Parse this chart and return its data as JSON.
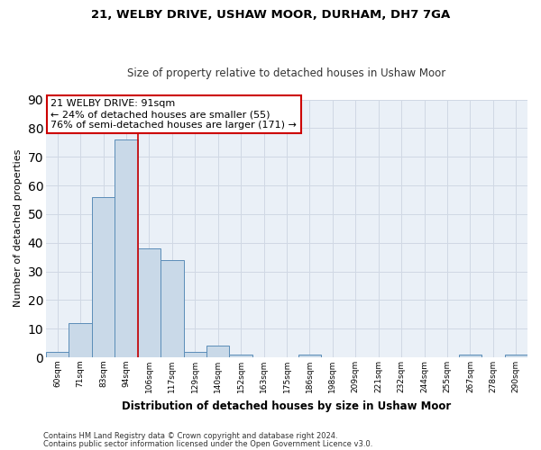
{
  "title_line1": "21, WELBY DRIVE, USHAW MOOR, DURHAM, DH7 7GA",
  "title_line2": "Size of property relative to detached houses in Ushaw Moor",
  "xlabel": "Distribution of detached houses by size in Ushaw Moor",
  "ylabel": "Number of detached properties",
  "bar_labels": [
    "60sqm",
    "71sqm",
    "83sqm",
    "94sqm",
    "106sqm",
    "117sqm",
    "129sqm",
    "140sqm",
    "152sqm",
    "163sqm",
    "175sqm",
    "186sqm",
    "198sqm",
    "209sqm",
    "221sqm",
    "232sqm",
    "244sqm",
    "255sqm",
    "267sqm",
    "278sqm",
    "290sqm"
  ],
  "bar_values": [
    2,
    12,
    56,
    76,
    38,
    34,
    2,
    4,
    1,
    0,
    0,
    1,
    0,
    0,
    0,
    0,
    0,
    0,
    1,
    0,
    1
  ],
  "bar_color": "#c9d9e8",
  "bar_edge_color": "#5b8db8",
  "vline_x": 3.5,
  "vline_color": "#cc0000",
  "annotation_text": "21 WELBY DRIVE: 91sqm\n← 24% of detached houses are smaller (55)\n76% of semi-detached houses are larger (171) →",
  "annotation_box_color": "#ffffff",
  "annotation_box_edge": "#cc0000",
  "ylim": [
    0,
    90
  ],
  "yticks": [
    0,
    10,
    20,
    30,
    40,
    50,
    60,
    70,
    80,
    90
  ],
  "grid_color": "#d0d8e4",
  "background_color": "#eaf0f7",
  "footer_line1": "Contains HM Land Registry data © Crown copyright and database right 2024.",
  "footer_line2": "Contains public sector information licensed under the Open Government Licence v3.0."
}
